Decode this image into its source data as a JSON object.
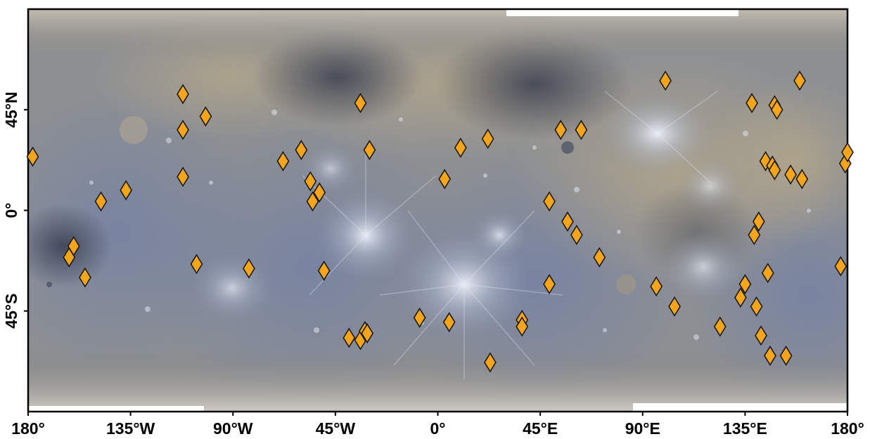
{
  "map": {
    "projection": "equirectangular",
    "lon_range": [
      -180,
      180
    ],
    "lat_range": [
      -90,
      90
    ],
    "marker_shape": "diamond",
    "marker_color": "#F5A51C",
    "x_ticks": [
      {
        "lon": -180,
        "label": "180°"
      },
      {
        "lon": -135,
        "label": "135°W"
      },
      {
        "lon": -90,
        "label": "90°W"
      },
      {
        "lon": -45,
        "label": "45°W"
      },
      {
        "lon": 0,
        "label": "0°"
      },
      {
        "lon": 45,
        "label": "45°E"
      },
      {
        "lon": 90,
        "label": "90°E"
      },
      {
        "lon": 135,
        "label": "135°E"
      },
      {
        "lon": 180,
        "label": "180°"
      }
    ],
    "y_ticks": [
      {
        "lat": 45,
        "label": "45°N"
      },
      {
        "lat": 0,
        "label": "0°"
      },
      {
        "lat": -45,
        "label": "45°S"
      }
    ],
    "points": [
      {
        "lon": -178,
        "lat": 24
      },
      {
        "lon": -148,
        "lat": 4
      },
      {
        "lon": -137,
        "lat": 9
      },
      {
        "lon": -160,
        "lat": -16
      },
      {
        "lon": -162,
        "lat": -21
      },
      {
        "lon": -155,
        "lat": -30
      },
      {
        "lon": -112,
        "lat": 52
      },
      {
        "lon": -112,
        "lat": 36
      },
      {
        "lon": -112,
        "lat": 15
      },
      {
        "lon": -102,
        "lat": 42
      },
      {
        "lon": -106,
        "lat": -24
      },
      {
        "lon": -83,
        "lat": -26
      },
      {
        "lon": -68,
        "lat": 22
      },
      {
        "lon": -60,
        "lat": 27
      },
      {
        "lon": -56,
        "lat": 13
      },
      {
        "lon": -52,
        "lat": 8
      },
      {
        "lon": -55,
        "lat": 4
      },
      {
        "lon": -50,
        "lat": -27
      },
      {
        "lon": -34,
        "lat": 48
      },
      {
        "lon": -30,
        "lat": 27
      },
      {
        "lon": -39,
        "lat": -57
      },
      {
        "lon": -34,
        "lat": -58
      },
      {
        "lon": -32,
        "lat": -54
      },
      {
        "lon": -31,
        "lat": -55
      },
      {
        "lon": -8,
        "lat": -48
      },
      {
        "lon": 3,
        "lat": 14
      },
      {
        "lon": 10,
        "lat": 28
      },
      {
        "lon": 5,
        "lat": -50
      },
      {
        "lon": 22,
        "lat": 32
      },
      {
        "lon": 23,
        "lat": -68
      },
      {
        "lon": 37,
        "lat": -49
      },
      {
        "lon": 37,
        "lat": -52
      },
      {
        "lon": 49,
        "lat": 4
      },
      {
        "lon": 49,
        "lat": -33
      },
      {
        "lon": 54,
        "lat": 36
      },
      {
        "lon": 57,
        "lat": -5
      },
      {
        "lon": 61,
        "lat": -11
      },
      {
        "lon": 63,
        "lat": 36
      },
      {
        "lon": 71,
        "lat": -21
      },
      {
        "lon": 100,
        "lat": 58
      },
      {
        "lon": 96,
        "lat": -34
      },
      {
        "lon": 104,
        "lat": -43
      },
      {
        "lon": 124,
        "lat": -52
      },
      {
        "lon": 133,
        "lat": -39
      },
      {
        "lon": 135,
        "lat": -33
      },
      {
        "lon": 138,
        "lat": 48
      },
      {
        "lon": 140,
        "lat": -43
      },
      {
        "lon": 139,
        "lat": -11
      },
      {
        "lon": 141,
        "lat": -5
      },
      {
        "lon": 142,
        "lat": -56
      },
      {
        "lon": 145,
        "lat": -28
      },
      {
        "lon": 146,
        "lat": -65
      },
      {
        "lon": 144,
        "lat": 22
      },
      {
        "lon": 147,
        "lat": 20
      },
      {
        "lon": 148,
        "lat": 18
      },
      {
        "lon": 148,
        "lat": 47
      },
      {
        "lon": 149,
        "lat": 45
      },
      {
        "lon": 153,
        "lat": -65
      },
      {
        "lon": 155,
        "lat": 16
      },
      {
        "lon": 159,
        "lat": 58
      },
      {
        "lon": 160,
        "lat": 14
      },
      {
        "lon": 177,
        "lat": -25
      },
      {
        "lon": 179,
        "lat": 21
      },
      {
        "lon": 180,
        "lat": 26
      }
    ]
  }
}
